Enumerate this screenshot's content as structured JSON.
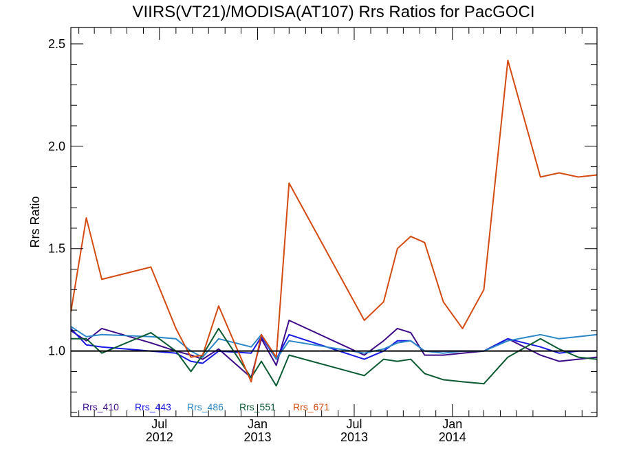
{
  "chart_data": {
    "type": "line",
    "title": "VIIRS(VT21)/MODISA(AT107)  Rrs Ratios for PacGOCI",
    "ylabel": "Rrs Ratio",
    "xlabel": "",
    "ylim": [
      0.68,
      2.58
    ],
    "xlim": [
      "2012-01-17",
      "2014-09-29"
    ],
    "yticks": [
      1.0,
      1.5,
      2.0,
      2.5
    ],
    "ytick_labels": [
      "1.0",
      "1.5",
      "2.0",
      "2.5"
    ],
    "xticks": [
      {
        "date": "2012-07-01",
        "label1": "Jul",
        "label2": "2012"
      },
      {
        "date": "2013-01-01",
        "label1": "Jan",
        "label2": "2013"
      },
      {
        "date": "2013-07-01",
        "label1": "Jul",
        "label2": "2013"
      },
      {
        "date": "2014-01-01",
        "label1": "Jan",
        "label2": "2014"
      }
    ],
    "reference_line": 1.0,
    "legend_position": "bottom-left",
    "x": [
      "2012-01-17",
      "2012-02-15",
      "2012-03-15",
      "2012-06-15",
      "2012-08-01",
      "2012-08-29",
      "2012-09-20",
      "2012-10-20",
      "2012-12-20",
      "2013-01-08",
      "2013-02-05",
      "2013-03-01",
      "2013-07-20",
      "2013-08-25",
      "2013-09-20",
      "2013-10-15",
      "2013-11-10",
      "2013-12-15",
      "2014-01-20",
      "2014-03-01",
      "2014-04-15",
      "2014-06-15",
      "2014-07-20",
      "2014-08-25",
      "2014-09-29"
    ],
    "series": [
      {
        "name": "Rrs_410",
        "color": "#3d0a8a",
        "values": [
          1.1,
          1.05,
          1.11,
          1.04,
          1.0,
          0.98,
          0.96,
          1.01,
          0.87,
          1.06,
          0.93,
          1.15,
          0.98,
          1.05,
          1.11,
          1.09,
          0.98,
          0.98,
          0.99,
          1.0,
          1.06,
          0.98,
          0.95,
          0.96,
          0.97
        ]
      },
      {
        "name": "Rrs_443",
        "color": "#1818e6",
        "values": [
          1.11,
          1.03,
          1.02,
          1.0,
          0.99,
          0.95,
          0.94,
          1.0,
          0.99,
          1.07,
          0.96,
          1.08,
          0.96,
          1.0,
          1.05,
          1.05,
          1.0,
          1.0,
          1.0,
          1.0,
          1.06,
          1.02,
          0.99,
          1.0,
          1.0
        ]
      },
      {
        "name": "Rrs_486",
        "color": "#2b86c8",
        "values": [
          1.12,
          1.07,
          1.08,
          1.07,
          1.06,
          1.0,
          0.97,
          1.06,
          1.02,
          1.08,
          0.96,
          1.05,
          0.99,
          1.01,
          1.04,
          1.05,
          1.0,
          0.99,
          1.0,
          1.0,
          1.05,
          1.08,
          1.06,
          1.07,
          1.08
        ]
      },
      {
        "name": "Rrs_551",
        "color": "#0a5a32",
        "values": [
          1.06,
          1.06,
          0.99,
          1.09,
          1.0,
          0.9,
          0.98,
          1.11,
          0.87,
          0.95,
          0.83,
          0.98,
          0.88,
          0.96,
          0.95,
          0.96,
          0.89,
          0.86,
          0.85,
          0.84,
          0.97,
          1.06,
          1.01,
          0.97,
          0.96
        ]
      },
      {
        "name": "Rrs_671",
        "color": "#d44a10",
        "values": [
          1.19,
          1.65,
          1.35,
          1.41,
          1.11,
          0.97,
          0.98,
          1.22,
          0.85,
          1.08,
          0.97,
          1.82,
          1.15,
          1.24,
          1.5,
          1.56,
          1.53,
          1.24,
          1.11,
          1.3,
          2.42,
          1.85,
          1.87,
          1.85,
          1.86
        ]
      }
    ]
  }
}
